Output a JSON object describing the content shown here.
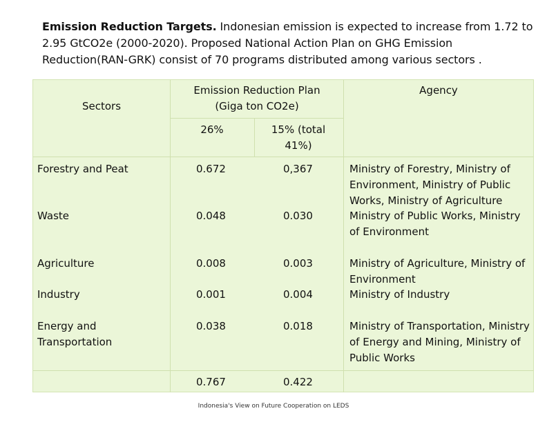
{
  "intro": {
    "bold": "Emission Reduction Targets.",
    "text": " Indonesian emission is expected to increase from 1.72 to 2.95 GtCO2e (2000-2020). Proposed National Action Plan on GHG Emission Reduction(RAN-GRK) consist of 70 programs distributed among various sectors ."
  },
  "table": {
    "headers": {
      "sectors": "Sectors",
      "plan": "Emission Reduction Plan (Giga ton CO2e)",
      "agency": "Agency",
      "col26": "26%",
      "col15": "15% (total 41%)"
    },
    "rows": [
      {
        "sector": "Forestry and Peat",
        "p26": "0.672",
        "p15": "0,367"
      },
      {
        "sector": "Waste",
        "p26": "0.048",
        "p15": "0.030"
      },
      {
        "sector": "Agriculture",
        "p26": "0.008",
        "p15": "0.003"
      },
      {
        "sector": "Industry",
        "p26": "0.001",
        "p15": "0.004"
      },
      {
        "sector": "Energy and Transportation",
        "p26": "0.038",
        "p15": "0.018"
      }
    ],
    "agencies": [
      "Ministry of Forestry, Ministry of Environment, Ministry of Public Works, Ministry of Agriculture",
      "Ministry of Public Works, Ministry of Environment",
      "Ministry of Agriculture, Ministry of Environment",
      "Ministry of Industry",
      "Ministry of Transportation, Ministry of Energy and Mining, Ministry of Public Works"
    ],
    "totals": {
      "p26": "0.767",
      "p15": "0.422"
    }
  },
  "footer": "Indonesia's View on Future Cooperation on LEDS"
}
